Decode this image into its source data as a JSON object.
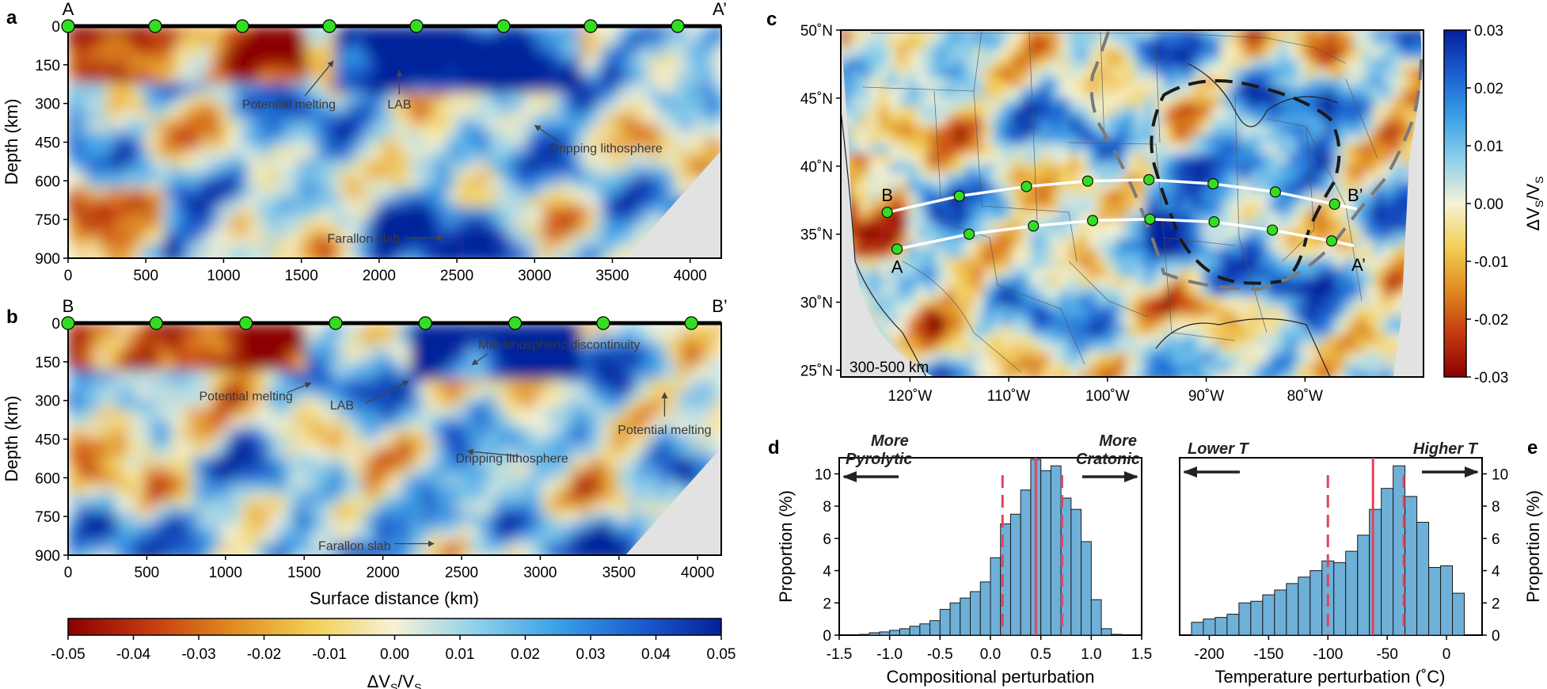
{
  "colors": {
    "seismic_cmap": [
      "#8b0000",
      "#c43a10",
      "#e08a20",
      "#f2cf55",
      "#f6f2d6",
      "#8fd0ea",
      "#3aa0e6",
      "#1b5ed0",
      "#06209a"
    ],
    "state_line": "#555555",
    "green_marker": "#33dd22",
    "hist_bar": "#6fb0d8",
    "median_line": "#e0455a",
    "craton_outline": "#1a1a1a",
    "gray_outline": "#7a7a7a",
    "no_data": "#e2e2e2"
  },
  "panel_a": {
    "label": "a",
    "start_label": "A",
    "end_label": "A’",
    "ylabel": "Depth (km)",
    "xticks": [
      "0",
      "500",
      "1000",
      "1500",
      "2000",
      "2500",
      "3000",
      "3500",
      "4000"
    ],
    "yticks": [
      "0",
      "150",
      "300",
      "450",
      "600",
      "750",
      "900"
    ],
    "xlim": [
      0,
      4200
    ],
    "ylim": [
      900,
      0
    ],
    "markers_km": [
      0,
      560,
      1120,
      1680,
      2240,
      2800,
      3360,
      3920
    ],
    "annotations": [
      {
        "text": "Potential melting",
        "x_km": 1420,
        "depth_km": 320
      },
      {
        "text": "LAB",
        "x_km": 2130,
        "depth_km": 320
      },
      {
        "text": "Dripping lithosphere",
        "x_km": 3460,
        "depth_km": 490
      },
      {
        "text": "Farallon slab",
        "x_km": 1900,
        "depth_km": 840
      }
    ]
  },
  "panel_b": {
    "label": "b",
    "start_label": "B",
    "end_label": "B’",
    "ylabel": "Depth (km)",
    "xlabel": "Surface distance (km)",
    "xticks": [
      "0",
      "500",
      "1000",
      "1500",
      "2000",
      "2500",
      "3000",
      "3500",
      "4000"
    ],
    "yticks": [
      "0",
      "150",
      "300",
      "450",
      "600",
      "750",
      "900"
    ],
    "xlim": [
      0,
      4150
    ],
    "ylim": [
      900,
      0
    ],
    "markers_km": [
      0,
      560,
      1130,
      1700,
      2270,
      2840,
      3400,
      3960
    ],
    "annotations": [
      {
        "text": "Mid-lithospheric discontinuity",
        "x_km": 3120,
        "depth_km": 100
      },
      {
        "text": "Potential melting",
        "x_km": 1130,
        "depth_km": 300
      },
      {
        "text": "LAB",
        "x_km": 1740,
        "depth_km": 335
      },
      {
        "text": "Potential melting",
        "x_km": 3790,
        "depth_km": 430
      },
      {
        "text": "Dripping lithosphere",
        "x_km": 2820,
        "depth_km": 540
      },
      {
        "text": "Farallon slab",
        "x_km": 1820,
        "depth_km": 880
      }
    ]
  },
  "colorbar_ab": {
    "label": "ΔV",
    "label_sub": "S",
    "label_mid": "/V",
    "label_sub2": "S",
    "ticks": [
      "-0.05",
      "-0.04",
      "-0.03",
      "-0.02",
      "-0.01",
      "0.00",
      "0.01",
      "0.02",
      "0.03",
      "0.04",
      "0.05"
    ],
    "range": [
      -0.05,
      0.05
    ]
  },
  "panel_c": {
    "label": "c",
    "depth_label": "300-500 km",
    "lon_ticks": [
      "120˚W",
      "110˚W",
      "100˚W",
      "90˚W",
      "80˚W"
    ],
    "lat_ticks": [
      "50˚N",
      "45˚N",
      "40˚N",
      "35˚N",
      "30˚N",
      "25˚N"
    ],
    "lon_range": [
      -127,
      -68
    ],
    "lat_range": [
      24.5,
      50
    ],
    "profile_A": {
      "start": "A",
      "end": "A’",
      "points": [
        [
          -121.3,
          33.9
        ],
        [
          -114,
          35.0
        ],
        [
          -107.5,
          35.6
        ],
        [
          -101.5,
          36.0
        ],
        [
          -95.7,
          36.1
        ],
        [
          -89.2,
          35.9
        ],
        [
          -83.3,
          35.3
        ],
        [
          -77.3,
          34.5
        ]
      ]
    },
    "profile_B": {
      "start": "B",
      "end": "B’",
      "points": [
        [
          -122.3,
          36.6
        ],
        [
          -115,
          37.8
        ],
        [
          -108.2,
          38.5
        ],
        [
          -102,
          38.9
        ],
        [
          -95.8,
          39.0
        ],
        [
          -89.3,
          38.7
        ],
        [
          -83.0,
          38.1
        ],
        [
          -77,
          37.2
        ]
      ]
    }
  },
  "colorbar_c": {
    "label": "ΔV",
    "label_sub": "S",
    "label_mid": "/V",
    "label_sub2": "S",
    "ticks": [
      "0.03",
      "0.02",
      "0.01",
      "0.00",
      "-0.01",
      "-0.02",
      "-0.03"
    ],
    "range": [
      -0.03,
      0.03
    ]
  },
  "chart_data": [
    {
      "type": "bar",
      "panel": "d",
      "title": "",
      "xlabel": "Compositional perturbation",
      "ylabel": "Proportion (%)",
      "xlim": [
        -1.5,
        1.5
      ],
      "ylim": [
        0,
        11
      ],
      "xticks": [
        "-1.5",
        "-1.0",
        "-0.5",
        "0.0",
        "0.5",
        "1.0",
        "1.5"
      ],
      "yticks": [
        "0",
        "2",
        "4",
        "6",
        "8",
        "10"
      ],
      "bin_edges": [
        -1.3,
        -1.2,
        -1.1,
        -1.0,
        -0.9,
        -0.8,
        -0.7,
        -0.6,
        -0.5,
        -0.4,
        -0.3,
        -0.2,
        -0.1,
        0.0,
        0.1,
        0.2,
        0.3,
        0.4,
        0.5,
        0.6,
        0.7,
        0.8,
        0.9,
        1.0,
        1.1,
        1.2,
        1.3
      ],
      "values": [
        0.05,
        0.15,
        0.2,
        0.3,
        0.4,
        0.55,
        0.7,
        0.9,
        1.6,
        2.0,
        2.3,
        2.7,
        3.3,
        4.8,
        6.9,
        7.5,
        9.0,
        10.9,
        10.2,
        10.5,
        8.5,
        7.8,
        5.8,
        2.2,
        0.4,
        0.05
      ],
      "median": 0.45,
      "dashed": [
        0.12,
        0.71
      ],
      "left_arrow_label": [
        "More",
        "Pyrolytic"
      ],
      "right_arrow_label": [
        "More",
        "Cratonic"
      ]
    },
    {
      "type": "bar",
      "panel": "e",
      "title": "",
      "xlabel": "Temperature perturbation (˚C)",
      "ylabel": "Proportion (%)",
      "xlim": [
        -225,
        30
      ],
      "ylim": [
        0,
        11
      ],
      "xticks": [
        "-200",
        "-150",
        "-100",
        "-50",
        "0"
      ],
      "yticks": [
        "0",
        "2",
        "4",
        "6",
        "8",
        "10"
      ],
      "bin_edges": [
        -215,
        -205,
        -195,
        -185,
        -175,
        -165,
        -155,
        -145,
        -135,
        -125,
        -115,
        -105,
        -95,
        -85,
        -75,
        -65,
        -55,
        -45,
        -35,
        -25,
        -15,
        -5,
        5,
        15
      ],
      "values": [
        0.8,
        1.0,
        1.1,
        1.3,
        2.0,
        2.1,
        2.5,
        2.8,
        3.2,
        3.6,
        4.0,
        4.6,
        4.5,
        5.2,
        6.2,
        7.8,
        9.1,
        10.5,
        8.6,
        7.0,
        4.2,
        4.3,
        2.6
      ],
      "median": -62,
      "dashed": [
        -100,
        -36
      ],
      "left_arrow_label": [
        "Lower T"
      ],
      "right_arrow_label": [
        "Higher T"
      ]
    }
  ]
}
